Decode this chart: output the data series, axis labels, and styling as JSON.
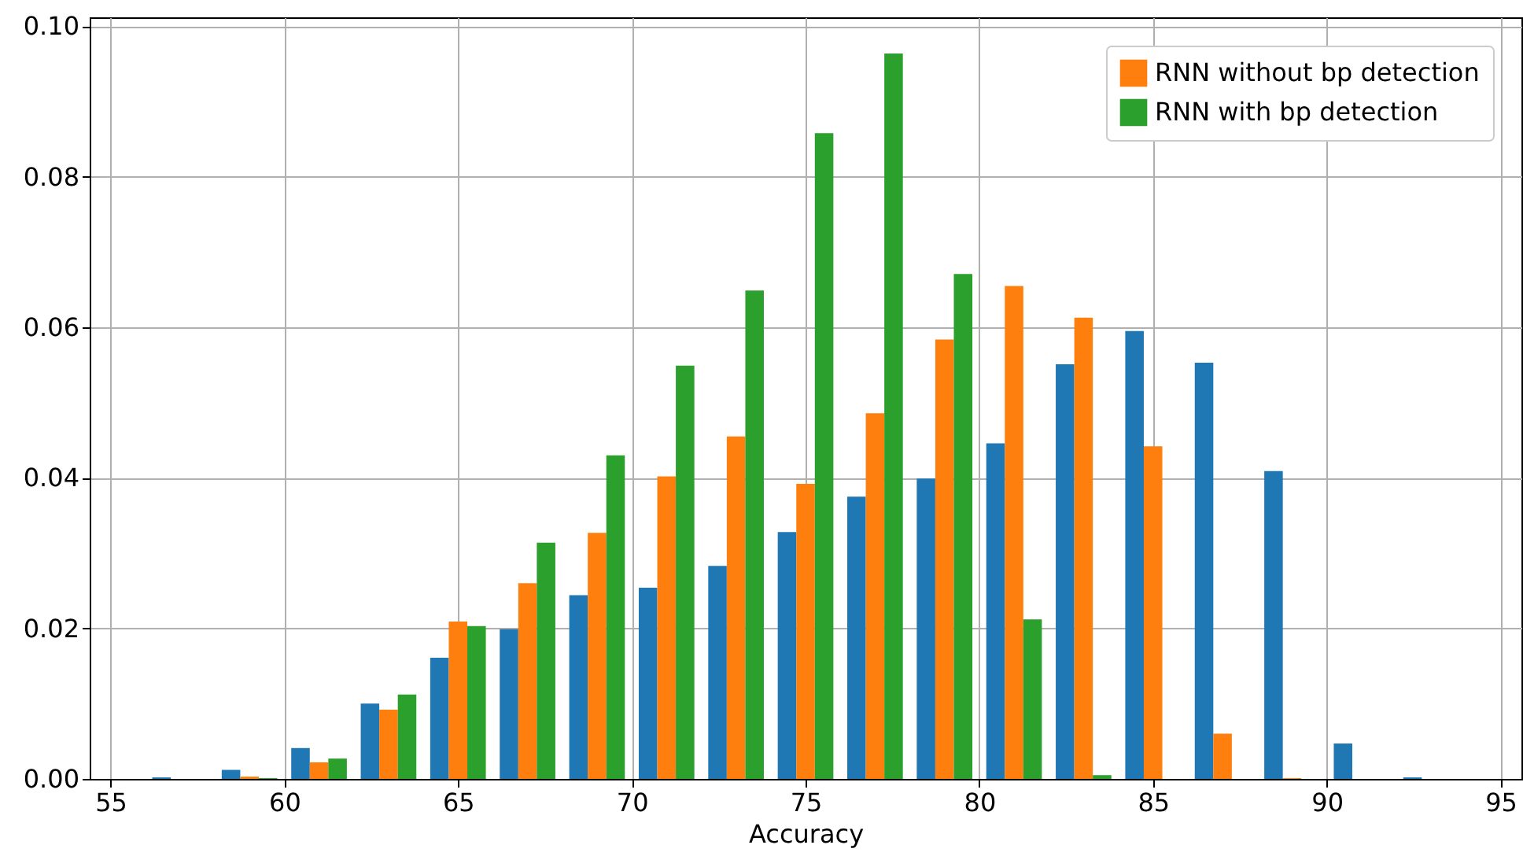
{
  "chart_data": {
    "type": "histogram",
    "xlabel": "Accuracy",
    "bins": [
      56,
      58,
      60,
      62,
      64,
      66,
      68,
      70,
      72,
      74,
      76,
      78,
      80,
      82,
      84,
      86,
      88,
      90,
      92,
      94
    ],
    "series": [
      {
        "color": "#1f77b4",
        "values": [
          0.0002,
          0.0012,
          0.0041,
          0.01,
          0.0161,
          0.0199,
          0.0244,
          0.0254,
          0.0283,
          0.0328,
          0.0375,
          0.0399,
          0.0446,
          0.0551,
          0.0595,
          0.0553,
          0.0409,
          0.0047,
          0.0002
        ]
      },
      {
        "name": "RNN without bp detection",
        "color": "#ff7f0e",
        "values": [
          0,
          0.0003,
          0.0022,
          0.0092,
          0.0209,
          0.026,
          0.0327,
          0.0402,
          0.0455,
          0.0392,
          0.0486,
          0.0584,
          0.0655,
          0.0613,
          0.0442,
          0.006,
          0.0001,
          0,
          0
        ]
      },
      {
        "name": "RNN with bp detection",
        "color": "#2ca02c",
        "values": [
          0,
          0.0001,
          0.0027,
          0.0112,
          0.0203,
          0.0314,
          0.043,
          0.0549,
          0.0649,
          0.0858,
          0.0964,
          0.0671,
          0.0212,
          0.0005,
          0,
          0,
          0,
          0,
          0
        ]
      }
    ],
    "xlim": [
      54.4,
      95.6
    ],
    "xticks": [
      55,
      60,
      65,
      70,
      75,
      80,
      85,
      90,
      95
    ],
    "ylim": [
      0,
      0.1012
    ],
    "yticks": [
      {
        "value": 0,
        "label": "0.00"
      },
      {
        "value": 0.02,
        "label": "0.02"
      },
      {
        "value": 0.04,
        "label": "0.04"
      },
      {
        "value": 0.06,
        "label": "0.06"
      },
      {
        "value": 0.08,
        "label": "0.08"
      },
      {
        "value": 0.1,
        "label": "0.10"
      }
    ],
    "grid": true,
    "legend": "top right"
  }
}
